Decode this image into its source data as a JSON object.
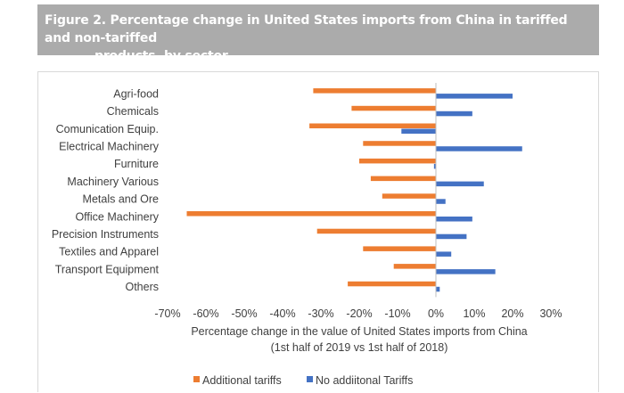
{
  "header": {
    "title_line1": "Figure 2. Percentage change in United States imports from China in tariffed and non-tariffed",
    "title_line2": "products, by sector"
  },
  "chart_data": {
    "type": "bar",
    "orientation": "horizontal",
    "categories": [
      "Agri-food",
      "Chemicals",
      "Comunication Equip.",
      "Electrical Machinery",
      "Furniture",
      "Machinery Various",
      "Metals and Ore",
      "Office Machinery",
      "Precision Instruments",
      "Textiles and Apparel",
      "Transport Equipment",
      "Others"
    ],
    "series": [
      {
        "name": "Additional tariffs",
        "color": "#ed7d31",
        "values": [
          -32,
          -22,
          -33,
          -19,
          -20,
          -17,
          -14,
          -65,
          -31,
          -19,
          -11,
          -23
        ]
      },
      {
        "name": "No addiitonal Tariffs",
        "color": "#4472c4",
        "values": [
          20,
          9.5,
          -9,
          22.5,
          -0.5,
          12.5,
          2.5,
          9.5,
          8,
          4,
          15.5,
          1
        ]
      }
    ],
    "xlim": [
      -70,
      30
    ],
    "xticks": [
      -70,
      -60,
      -50,
      -40,
      -30,
      -20,
      -10,
      0,
      10,
      20,
      30
    ],
    "xtick_labels": [
      "-70%",
      "-60%",
      "-50%",
      "-40%",
      "-30%",
      "-20%",
      "-10%",
      "0%",
      "10%",
      "20%",
      "30%"
    ],
    "xlabel_line1": "Percentage change in the value of United States imports from China",
    "xlabel_line2": "(1st half of 2019 vs 1st half of 2018)",
    "legend": [
      "Additional tariffs",
      "No addiitonal Tariffs"
    ],
    "legend_position": "bottom",
    "grid": false
  }
}
